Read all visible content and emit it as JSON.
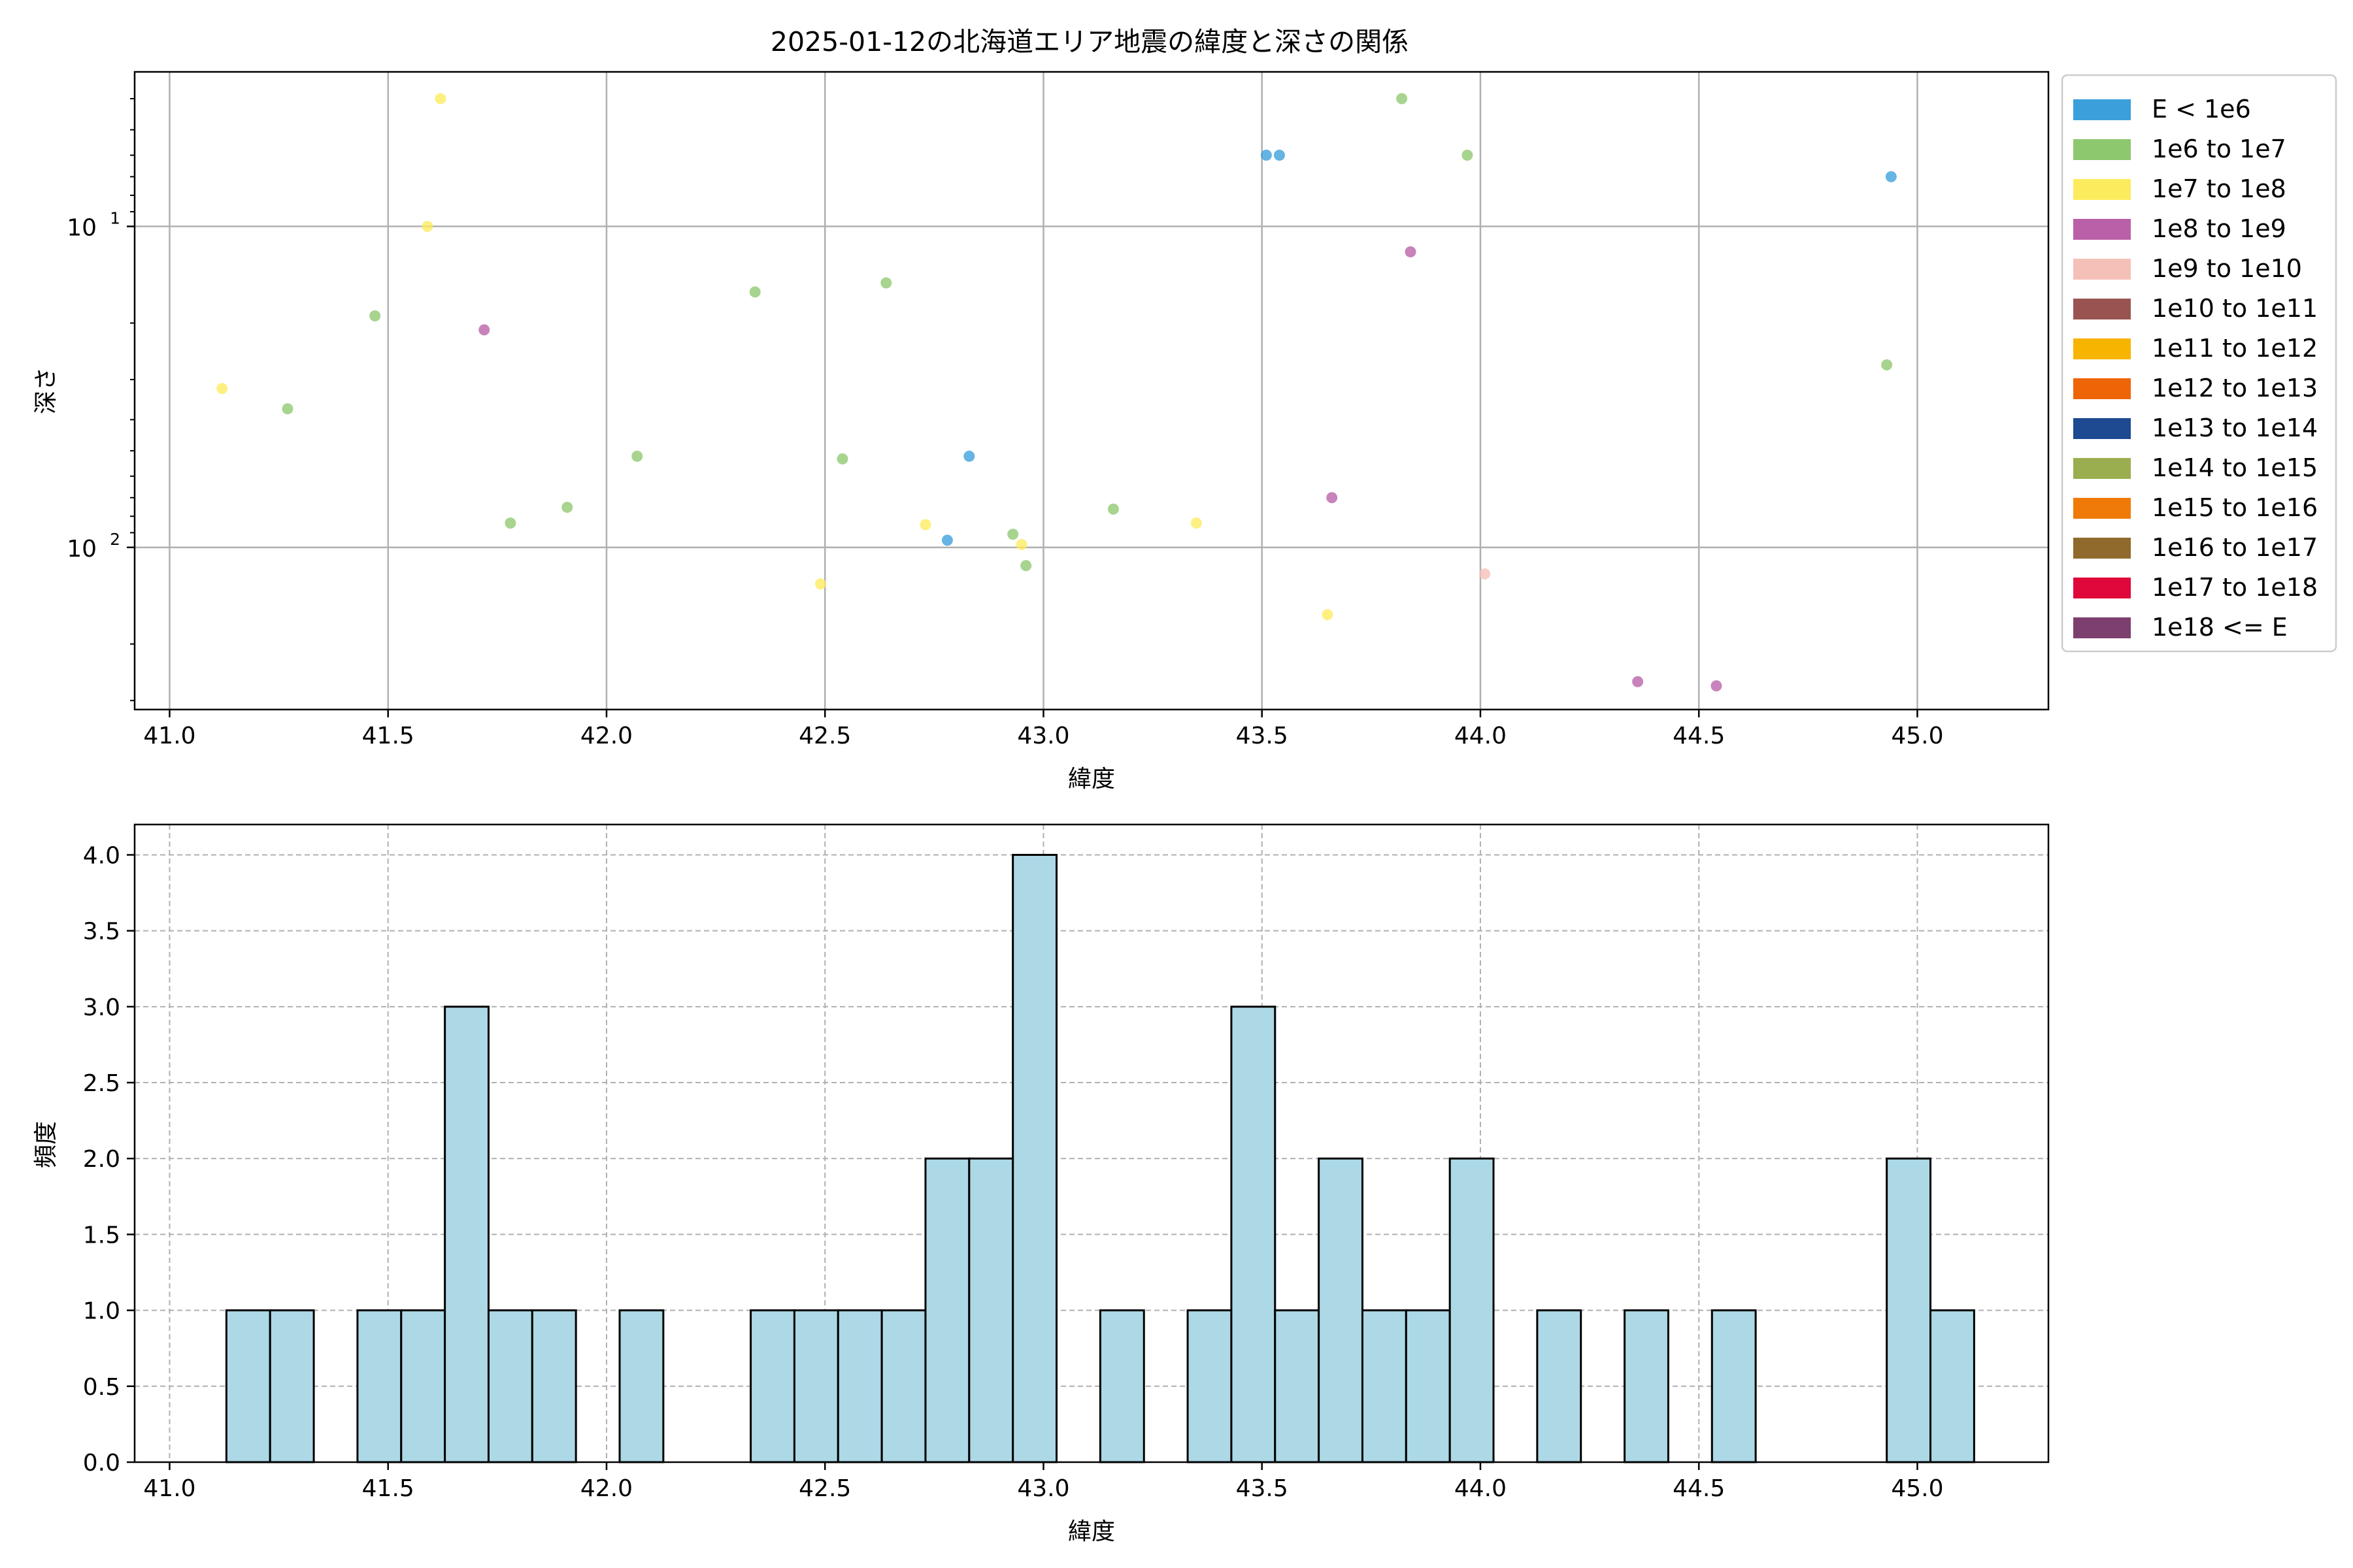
{
  "chart_data": [
    {
      "type": "scatter",
      "title": "2025-01-12の北海道エリア地震の緯度と深さの関係",
      "xlabel": "緯度",
      "ylabel": "深さ",
      "xlim": [
        40.92,
        45.3
      ],
      "ylim": [
        320,
        3.3
      ],
      "y_scale": "log",
      "y_inverted": true,
      "grid": true,
      "xticks": [
        41.0,
        41.5,
        42.0,
        42.5,
        43.0,
        43.5,
        44.0,
        44.5,
        45.0
      ],
      "xtick_labels": [
        "41.0",
        "41.5",
        "42.0",
        "42.5",
        "43.0",
        "43.5",
        "44.0",
        "44.5",
        "45.0"
      ],
      "yticks": [
        {
          "value": 10,
          "base": "10",
          "exp": "1"
        },
        {
          "value": 100,
          "base": "10",
          "exp": "2"
        }
      ],
      "legend_position": "outside-right",
      "legend": [
        {
          "label": "E < 1e6",
          "color": "#3a9fdb"
        },
        {
          "label": "1e6 to 1e7",
          "color": "#8ec86e"
        },
        {
          "label": "1e7 to 1e8",
          "color": "#fcec5d"
        },
        {
          "label": "1e8 to 1e9",
          "color": "#b960a8"
        },
        {
          "label": "1e9 to 1e10",
          "color": "#f5c0b7"
        },
        {
          "label": "1e10 to 1e11",
          "color": "#995452"
        },
        {
          "label": "1e11 to 1e12",
          "color": "#f7b400"
        },
        {
          "label": "1e12 to 1e13",
          "color": "#ee6508"
        },
        {
          "label": "1e13 to 1e14",
          "color": "#1d4a90"
        },
        {
          "label": "1e14 to 1e15",
          "color": "#9bae4f"
        },
        {
          "label": "1e15 to 1e16",
          "color": "#ef7a08"
        },
        {
          "label": "1e16 to 1e17",
          "color": "#906a2c"
        },
        {
          "label": "1e17 to 1e18",
          "color": "#e0073b"
        },
        {
          "label": "1e18 <= E",
          "color": "#7d3f6d"
        }
      ],
      "points": [
        {
          "x": 41.12,
          "y": 32,
          "c": 2
        },
        {
          "x": 41.27,
          "y": 37,
          "c": 1
        },
        {
          "x": 41.47,
          "y": 19,
          "c": 1
        },
        {
          "x": 41.59,
          "y": 10,
          "c": 2
        },
        {
          "x": 41.62,
          "y": 4,
          "c": 2
        },
        {
          "x": 41.72,
          "y": 21,
          "c": 3
        },
        {
          "x": 41.78,
          "y": 84,
          "c": 1
        },
        {
          "x": 41.91,
          "y": 75,
          "c": 1
        },
        {
          "x": 42.07,
          "y": 52,
          "c": 1
        },
        {
          "x": 42.34,
          "y": 16,
          "c": 1
        },
        {
          "x": 42.49,
          "y": 130,
          "c": 2
        },
        {
          "x": 42.54,
          "y": 53,
          "c": 1
        },
        {
          "x": 42.64,
          "y": 15,
          "c": 1
        },
        {
          "x": 42.73,
          "y": 85,
          "c": 2
        },
        {
          "x": 42.78,
          "y": 95,
          "c": 0
        },
        {
          "x": 42.83,
          "y": 52,
          "c": 0
        },
        {
          "x": 42.93,
          "y": 91,
          "c": 1
        },
        {
          "x": 42.95,
          "y": 98,
          "c": 2
        },
        {
          "x": 42.96,
          "y": 114,
          "c": 1
        },
        {
          "x": 43.16,
          "y": 76,
          "c": 1
        },
        {
          "x": 43.35,
          "y": 84,
          "c": 2
        },
        {
          "x": 43.51,
          "y": 6,
          "c": 0
        },
        {
          "x": 43.54,
          "y": 6,
          "c": 0
        },
        {
          "x": 43.65,
          "y": 162,
          "c": 2
        },
        {
          "x": 43.66,
          "y": 70,
          "c": 3
        },
        {
          "x": 43.82,
          "y": 4,
          "c": 1
        },
        {
          "x": 43.84,
          "y": 12,
          "c": 3
        },
        {
          "x": 43.97,
          "y": 6,
          "c": 1
        },
        {
          "x": 44.01,
          "y": 121,
          "c": 4
        },
        {
          "x": 44.36,
          "y": 262,
          "c": 3
        },
        {
          "x": 44.54,
          "y": 270,
          "c": 3
        },
        {
          "x": 44.93,
          "y": 27,
          "c": 1
        },
        {
          "x": 44.94,
          "y": 7,
          "c": 0
        }
      ]
    },
    {
      "type": "bar",
      "title": "",
      "xlabel": "緯度",
      "ylabel": "頻度",
      "xlim": [
        40.92,
        45.3
      ],
      "ylim": [
        0,
        4.2
      ],
      "grid": true,
      "bar_color": "#add8e6",
      "bin_width": 0.1,
      "xticks": [
        41.0,
        41.5,
        42.0,
        42.5,
        43.0,
        43.5,
        44.0,
        44.5,
        45.0
      ],
      "xtick_labels": [
        "41.0",
        "41.5",
        "42.0",
        "42.5",
        "43.0",
        "43.5",
        "44.0",
        "44.5",
        "45.0"
      ],
      "yticks": [
        0,
        0.5,
        1.0,
        1.5,
        2.0,
        2.5,
        3.0,
        3.5,
        4.0
      ],
      "ytick_labels": [
        "0.0",
        "0.5",
        "1.0",
        "1.5",
        "2.0",
        "2.5",
        "3.0",
        "3.5",
        "4.0"
      ],
      "bins": [
        {
          "start": 41.13,
          "value": 1
        },
        {
          "start": 41.23,
          "value": 1
        },
        {
          "start": 41.43,
          "value": 1
        },
        {
          "start": 41.53,
          "value": 1
        },
        {
          "start": 41.63,
          "value": 3
        },
        {
          "start": 41.73,
          "value": 1
        },
        {
          "start": 41.83,
          "value": 1
        },
        {
          "start": 42.03,
          "value": 1
        },
        {
          "start": 42.33,
          "value": 1
        },
        {
          "start": 42.43,
          "value": 1
        },
        {
          "start": 42.53,
          "value": 1
        },
        {
          "start": 42.63,
          "value": 1
        },
        {
          "start": 42.73,
          "value": 2
        },
        {
          "start": 42.83,
          "value": 2
        },
        {
          "start": 42.93,
          "value": 4
        },
        {
          "start": 43.13,
          "value": 1
        },
        {
          "start": 43.33,
          "value": 1
        },
        {
          "start": 43.43,
          "value": 3
        },
        {
          "start": 43.53,
          "value": 1
        },
        {
          "start": 43.63,
          "value": 2
        },
        {
          "start": 43.73,
          "value": 1
        },
        {
          "start": 43.83,
          "value": 1
        },
        {
          "start": 43.93,
          "value": 2
        },
        {
          "start": 44.13,
          "value": 1
        },
        {
          "start": 44.33,
          "value": 1
        },
        {
          "start": 44.53,
          "value": 1
        },
        {
          "start": 44.93,
          "value": 2
        },
        {
          "start": 45.03,
          "value": 1
        }
      ]
    }
  ]
}
